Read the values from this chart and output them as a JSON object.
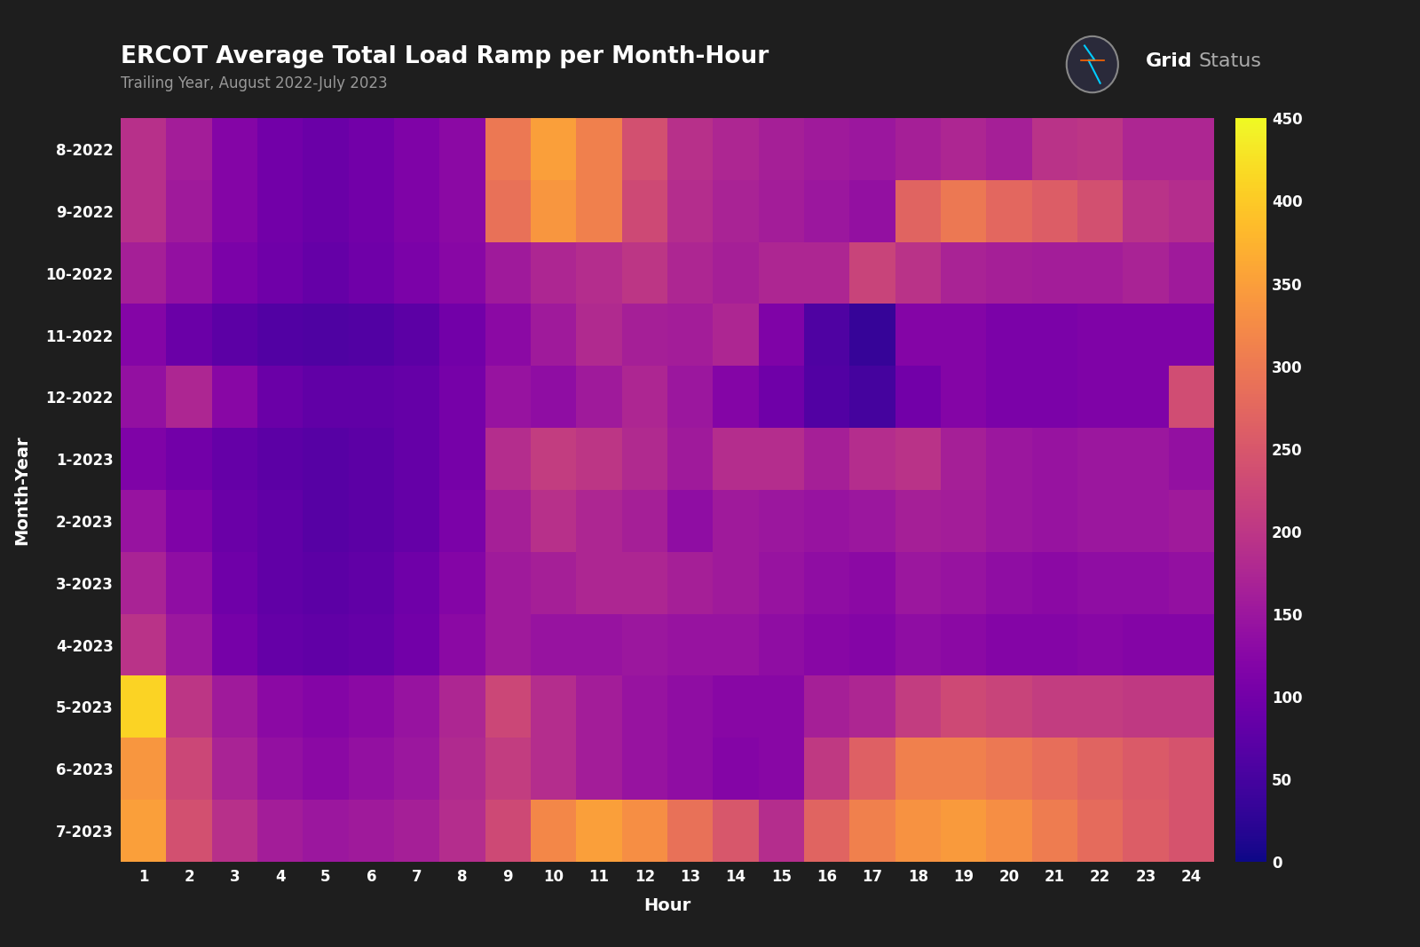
{
  "title": "ERCOT Average Total Load Ramp per Month-Hour",
  "subtitle": "Trailing Year, August 2022-July 2023",
  "xlabel": "Hour",
  "ylabel": "Month-Year",
  "months": [
    "8-2022",
    "9-2022",
    "10-2022",
    "11-2022",
    "12-2022",
    "1-2023",
    "2-2023",
    "3-2023",
    "4-2023",
    "5-2023",
    "6-2023",
    "7-2023"
  ],
  "hours": [
    "1",
    "2",
    "3",
    "4",
    "5",
    "6",
    "7",
    "8",
    "9",
    "10",
    "11",
    "12",
    "13",
    "14",
    "15",
    "16",
    "17",
    "18",
    "19",
    "20",
    "21",
    "22",
    "23",
    "24"
  ],
  "vmin": 0,
  "vmax": 450,
  "colormap": "plasma",
  "background_color": "#1e1e1e",
  "text_color": "#ffffff",
  "subtitle_color": "#999999",
  "data": [
    [
      190,
      160,
      120,
      100,
      90,
      100,
      115,
      130,
      300,
      350,
      310,
      240,
      190,
      175,
      165,
      155,
      150,
      165,
      175,
      165,
      195,
      200,
      175,
      175
    ],
    [
      190,
      155,
      120,
      100,
      90,
      100,
      115,
      130,
      290,
      340,
      310,
      230,
      185,
      170,
      160,
      150,
      140,
      270,
      300,
      275,
      260,
      240,
      195,
      185
    ],
    [
      165,
      140,
      110,
      95,
      85,
      95,
      110,
      125,
      155,
      175,
      185,
      200,
      175,
      165,
      175,
      175,
      220,
      195,
      170,
      165,
      160,
      160,
      170,
      155
    ],
    [
      120,
      90,
      75,
      65,
      60,
      65,
      75,
      100,
      130,
      155,
      180,
      165,
      160,
      175,
      115,
      60,
      35,
      120,
      120,
      110,
      110,
      115,
      115,
      115
    ],
    [
      140,
      175,
      125,
      90,
      80,
      80,
      85,
      105,
      145,
      135,
      155,
      175,
      150,
      120,
      95,
      65,
      50,
      100,
      120,
      110,
      110,
      115,
      115,
      235
    ],
    [
      115,
      100,
      85,
      75,
      70,
      75,
      85,
      105,
      185,
      210,
      200,
      180,
      155,
      185,
      185,
      165,
      185,
      195,
      165,
      150,
      145,
      150,
      150,
      140
    ],
    [
      145,
      115,
      90,
      80,
      70,
      75,
      85,
      110,
      165,
      190,
      175,
      165,
      135,
      155,
      150,
      145,
      150,
      165,
      160,
      150,
      145,
      150,
      150,
      155
    ],
    [
      170,
      135,
      95,
      80,
      75,
      80,
      95,
      120,
      155,
      165,
      175,
      175,
      165,
      155,
      145,
      135,
      130,
      150,
      145,
      135,
      130,
      135,
      135,
      140
    ],
    [
      195,
      150,
      105,
      85,
      80,
      85,
      100,
      130,
      155,
      145,
      145,
      150,
      145,
      145,
      135,
      125,
      120,
      135,
      130,
      120,
      120,
      125,
      120,
      120
    ],
    [
      410,
      200,
      155,
      130,
      120,
      130,
      145,
      175,
      225,
      185,
      160,
      145,
      135,
      125,
      125,
      165,
      175,
      210,
      230,
      220,
      210,
      210,
      205,
      205
    ],
    [
      340,
      225,
      170,
      140,
      130,
      140,
      150,
      180,
      210,
      185,
      160,
      145,
      135,
      120,
      125,
      205,
      265,
      310,
      310,
      300,
      285,
      270,
      255,
      245
    ],
    [
      350,
      240,
      190,
      160,
      150,
      155,
      165,
      185,
      230,
      320,
      350,
      330,
      290,
      250,
      185,
      270,
      310,
      335,
      345,
      330,
      305,
      280,
      260,
      245
    ]
  ]
}
